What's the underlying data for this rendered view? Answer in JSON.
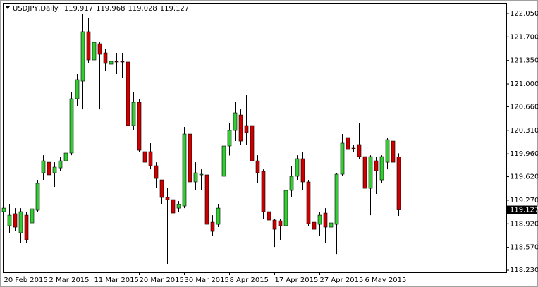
{
  "chart_data": {
    "type": "candlestick",
    "title": "USDJPY,Daily",
    "up_color": "#33cc33",
    "down_color": "#cc0000",
    "wick_color": "#000000",
    "categories": [
      "20 Feb 2015",
      null,
      null,
      null,
      null,
      null,
      null,
      null,
      "2 Mar 2015",
      null,
      null,
      null,
      null,
      null,
      null,
      null,
      "11 Mar 2015",
      null,
      null,
      null,
      null,
      null,
      null,
      null,
      "20 Mar 2015",
      null,
      null,
      null,
      null,
      null,
      null,
      null,
      "30 Mar 2015",
      null,
      null,
      null,
      null,
      null,
      null,
      null,
      "8 Apr 2015",
      null,
      null,
      null,
      null,
      null,
      null,
      null,
      "17 Apr 2015",
      null,
      null,
      null,
      null,
      null,
      null,
      null,
      "27 Apr 2015",
      null,
      null,
      null,
      null,
      null,
      null,
      null,
      "6 May 2015",
      null,
      null,
      null,
      null,
      null,
      null
    ],
    "open": [
      119.101,
      118.891,
      119.07,
      118.786,
      119.048,
      118.933,
      119.122,
      119.678,
      119.835,
      119.678,
      119.751,
      119.856,
      119.972,
      120.78,
      121.042,
      121.777,
      121.357,
      121.598,
      121.462,
      121.294,
      121.336,
      121.336,
      121.326,
      120.381,
      120.727,
      119.993,
      119.993,
      119.783,
      119.573,
      119.311,
      119.279,
      119.153,
      119.185,
      120.255,
      119.542,
      119.647,
      119.647,
      118.943,
      118.912,
      119.626,
      120.077,
      120.308,
      120.538,
      120.381,
      120.381,
      119.856,
      119.699,
      119.101,
      118.975,
      118.964,
      118.891,
      119.416,
      119.626,
      119.888,
      119.542,
      118.943,
      118.912,
      119.08,
      118.87,
      118.912,
      119.657,
      120.203,
      120.045,
      120.098,
      119.919,
      119.447,
      119.856,
      119.573,
      119.835,
      120.15,
      119.917
    ],
    "high": [
      119.258,
      119.206,
      119.153,
      119.153,
      119.101,
      119.206,
      119.573,
      119.94,
      119.888,
      119.835,
      119.919,
      120.045,
      120.885,
      121.147,
      122.039,
      121.987,
      121.724,
      121.619,
      121.514,
      121.462,
      121.462,
      121.462,
      121.409,
      120.885,
      120.78,
      120.098,
      120.119,
      119.835,
      119.573,
      119.447,
      119.311,
      119.258,
      120.36,
      120.308,
      119.835,
      119.73,
      119.783,
      119.048,
      119.206,
      120.15,
      120.413,
      120.727,
      120.622,
      120.832,
      120.465,
      119.94,
      119.73,
      119.206,
      118.996,
      118.996,
      119.468,
      119.783,
      119.94,
      119.993,
      119.573,
      119.048,
      119.101,
      119.153,
      118.996,
      119.678,
      120.255,
      120.255,
      120.098,
      120.413,
      119.993,
      119.94,
      119.919,
      119.94,
      120.203,
      120.255,
      119.968
    ],
    "low": [
      118.261,
      118.786,
      118.807,
      118.629,
      118.629,
      118.786,
      119.101,
      119.573,
      119.573,
      119.468,
      119.709,
      119.783,
      119.94,
      120.675,
      120.622,
      121.305,
      121.147,
      120.622,
      121.2,
      121.095,
      121.147,
      121.095,
      119.258,
      120.308,
      119.993,
      119.783,
      119.73,
      119.447,
      119.206,
      118.314,
      118.975,
      119.101,
      119.153,
      119.468,
      119.416,
      119.416,
      118.734,
      118.734,
      118.87,
      119.521,
      119.935,
      120.15,
      120.098,
      120.098,
      119.783,
      119.521,
      118.996,
      118.681,
      118.576,
      118.681,
      118.524,
      119.311,
      119.573,
      119.416,
      118.891,
      118.734,
      118.734,
      118.629,
      118.576,
      118.471,
      119.626,
      119.94,
      119.993,
      119.888,
      119.258,
      119.048,
      119.363,
      119.521,
      119.73,
      119.783,
      119.028
    ],
    "close": [
      119.153,
      119.048,
      118.87,
      119.101,
      118.681,
      119.143,
      119.521,
      119.856,
      119.647,
      119.762,
      119.856,
      119.972,
      120.78,
      121.063,
      121.777,
      121.357,
      121.619,
      121.441,
      121.305,
      121.336,
      121.326,
      121.326,
      120.381,
      120.727,
      120.014,
      119.835,
      119.783,
      119.594,
      119.311,
      119.279,
      119.08,
      119.206,
      120.255,
      119.542,
      119.678,
      119.657,
      118.912,
      118.807,
      119.153,
      120.077,
      120.308,
      120.57,
      120.15,
      120.276,
      119.856,
      119.678,
      119.101,
      118.975,
      118.838,
      118.891,
      119.416,
      119.626,
      119.888,
      119.542,
      118.922,
      118.838,
      119.048,
      118.87,
      118.933,
      119.657,
      120.119,
      120.024,
      120.035,
      119.919,
      119.447,
      119.919,
      119.709,
      119.919,
      120.171,
      119.835,
      119.127
    ],
    "ylim": [
      118.199,
      122.207
    ],
    "yticks": [
      {
        "value": 122.05,
        "label": "122.050"
      },
      {
        "value": 121.7,
        "label": "121.700"
      },
      {
        "value": 121.35,
        "label": "121.350"
      },
      {
        "value": 121,
        "label": "121.000"
      },
      {
        "value": 120.66,
        "label": "120.660"
      },
      {
        "value": 120.31,
        "label": "120.310"
      },
      {
        "value": 119.96,
        "label": "119.960"
      },
      {
        "value": 119.62,
        "label": "119.620"
      },
      {
        "value": 119.27,
        "label": "119.270"
      },
      {
        "value": 118.92,
        "label": "118.920"
      },
      {
        "value": 118.57,
        "label": "118.570"
      },
      {
        "value": 118.23,
        "label": "118.230"
      }
    ]
  }
}
